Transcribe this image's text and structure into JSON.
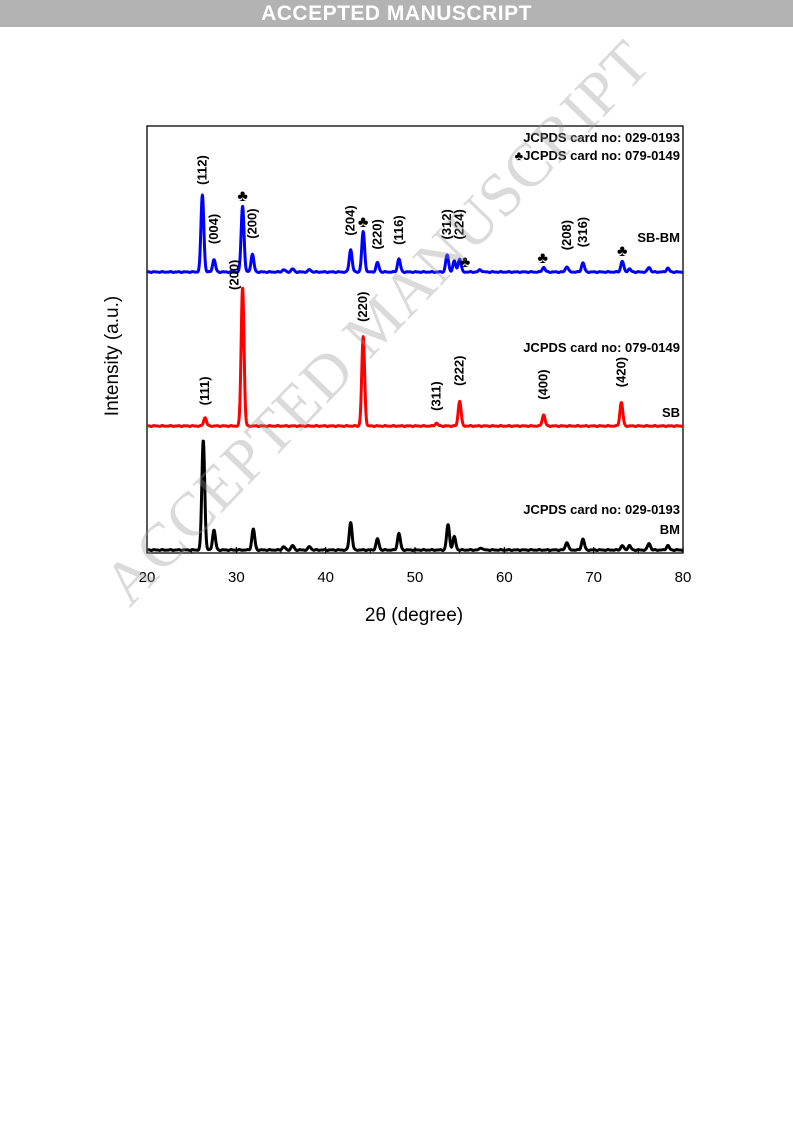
{
  "banner": "ACCEPTED MANUSCRIPT",
  "watermark": "ACCEPTED MANUSCRIPT",
  "chart_data": {
    "type": "line",
    "xlabel": "2θ (degree)",
    "ylabel": "Intensity (a.u.)",
    "xlim": [
      20,
      80
    ],
    "xticks": [
      20,
      30,
      40,
      50,
      60,
      70,
      80
    ],
    "grid": false,
    "series": [
      {
        "name": "BM",
        "color": "#000000",
        "card": "JCPDS card no: 029-0193",
        "peaks": [
          [
            26.3,
            100
          ],
          [
            27.5,
            18
          ],
          [
            31.9,
            19
          ],
          [
            35.3,
            3
          ],
          [
            36.3,
            4
          ],
          [
            38.2,
            3
          ],
          [
            42.8,
            25
          ],
          [
            45.8,
            10
          ],
          [
            48.2,
            15
          ],
          [
            53.7,
            23
          ],
          [
            54.4,
            12
          ],
          [
            57.4,
            2
          ],
          [
            67.0,
            7
          ],
          [
            68.8,
            10
          ],
          [
            73.2,
            4
          ],
          [
            74.0,
            4
          ],
          [
            76.2,
            6
          ],
          [
            78.3,
            4
          ]
        ],
        "labels": []
      },
      {
        "name": "SB",
        "color": "#ff0000",
        "card": "JCPDS card no: 079-0149",
        "peaks": [
          [
            26.5,
            6
          ],
          [
            30.7,
            100
          ],
          [
            44.2,
            64
          ],
          [
            52.4,
            2
          ],
          [
            55.0,
            18
          ],
          [
            64.4,
            8
          ],
          [
            73.1,
            17
          ]
        ],
        "labels": [
          {
            "text": "(111)",
            "x": 26.5,
            "y": 12
          },
          {
            "text": "(200)",
            "x": 29.8,
            "y": 95
          },
          {
            "text": "(220)",
            "x": 44.2,
            "y": 72
          },
          {
            "text": "(311)",
            "x": 52.4,
            "y": 8
          },
          {
            "text": "(222)",
            "x": 55.0,
            "y": 26
          },
          {
            "text": "(400)",
            "x": 64.4,
            "y": 16
          },
          {
            "text": "(420)",
            "x": 73.1,
            "y": 25
          }
        ]
      },
      {
        "name": "SB-BM",
        "color": "#0000ff",
        "card": "JCPDS card no: 029-0193",
        "card2": "♣JCPDS card no: 079-0149",
        "peaks": [
          [
            26.2,
            100
          ],
          [
            27.5,
            16
          ],
          [
            30.7,
            86
          ],
          [
            31.8,
            23
          ],
          [
            35.3,
            3
          ],
          [
            36.3,
            4
          ],
          [
            38.2,
            3
          ],
          [
            42.8,
            29
          ],
          [
            44.2,
            52
          ],
          [
            45.8,
            12
          ],
          [
            48.2,
            17
          ],
          [
            53.6,
            22
          ],
          [
            54.4,
            14
          ],
          [
            55.0,
            17
          ],
          [
            57.3,
            3
          ],
          [
            64.4,
            6
          ],
          [
            67.0,
            7
          ],
          [
            68.8,
            12
          ],
          [
            73.2,
            14
          ],
          [
            74.0,
            4
          ],
          [
            76.2,
            6
          ],
          [
            78.3,
            5
          ]
        ],
        "labels": [
          {
            "text": "(112)",
            "x": 26.2,
            "y": 108
          },
          {
            "text": "(004)",
            "x": 27.5,
            "y": 31
          },
          {
            "text": "(200)",
            "x": 31.8,
            "y": 38
          },
          {
            "text": "(204)",
            "x": 42.8,
            "y": 42
          },
          {
            "text": "(220)",
            "x": 45.8,
            "y": 24
          },
          {
            "text": "(116)",
            "x": 48.2,
            "y": 30
          },
          {
            "text": "(312)",
            "x": 53.6,
            "y": 37
          },
          {
            "text": "(224)",
            "x": 55.0,
            "y": 37
          },
          {
            "text": "(208)",
            "x": 67.0,
            "y": 23
          },
          {
            "text": "(316)",
            "x": 68.8,
            "y": 27
          }
        ],
        "clubs": [
          30.7,
          44.2,
          55.6,
          64.3,
          73.2
        ]
      }
    ]
  }
}
